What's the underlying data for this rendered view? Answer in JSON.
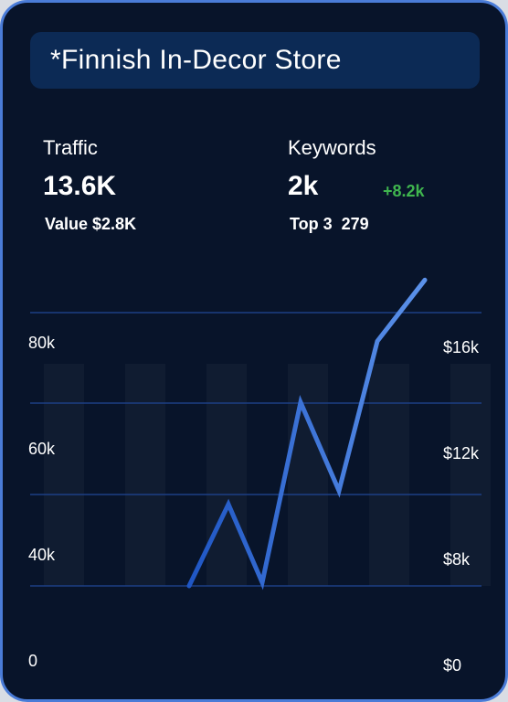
{
  "header": {
    "title": "*Finnish In-Decor Store"
  },
  "metrics": {
    "traffic": {
      "label": "Traffic",
      "value": "13.6K",
      "sub": "Value $2.8K"
    },
    "keywords": {
      "label": "Keywords",
      "value": "2k",
      "delta": "+8.2k",
      "sub": "Top 3  279"
    }
  },
  "colors": {
    "background": "#08142a",
    "border": "#4a7cd8",
    "title_bar": "#0c2a55",
    "grid": "#1c3f85",
    "line_start": "#1f56c4",
    "line_end": "#5c92ea",
    "delta": "#3fb54e"
  },
  "chart_data": {
    "type": "line",
    "title": "",
    "y_left": {
      "ticks": [
        "0",
        "40k",
        "60k",
        "80k"
      ]
    },
    "y_right": {
      "ticks": [
        "$0",
        "$8k",
        "$12k",
        "$16k"
      ]
    },
    "grid": true,
    "series": [
      {
        "values": [
          40000,
          52000,
          40500,
          67000,
          54000,
          76000,
          85000
        ]
      }
    ]
  }
}
